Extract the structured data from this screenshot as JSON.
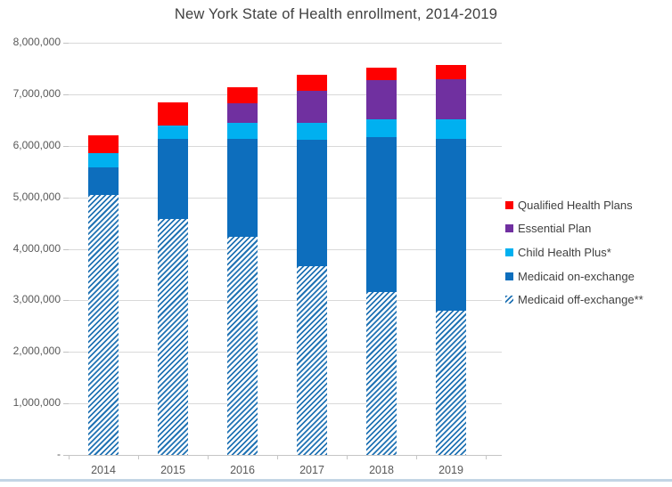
{
  "chart_data": {
    "type": "bar",
    "stacked": true,
    "title": "New York State of Health enrollment, 2014-2019",
    "categories": [
      "2014",
      "2015",
      "2016",
      "2017",
      "2018",
      "2019"
    ],
    "series": [
      {
        "name": "Medicaid off-exchange**",
        "color": "#2173b4",
        "fill": "diagonal-hatch",
        "values": [
          5050000,
          4580000,
          4230000,
          3660000,
          3160000,
          2800000
        ]
      },
      {
        "name": "Medicaid on-exchange",
        "color": "#0d6ebd",
        "fill": "solid",
        "values": [
          530000,
          1560000,
          1910000,
          2450000,
          3000000,
          3330000
        ]
      },
      {
        "name": "Child Health Plus*",
        "color": "#00b0f0",
        "fill": "solid",
        "values": [
          270000,
          250000,
          300000,
          340000,
          360000,
          390000
        ]
      },
      {
        "name": "Essential Plan",
        "color": "#7030a0",
        "fill": "solid",
        "values": [
          0,
          0,
          390000,
          620000,
          750000,
          770000
        ]
      },
      {
        "name": "Qualified Health Plans",
        "color": "#fe0000",
        "fill": "solid",
        "values": [
          360000,
          450000,
          300000,
          300000,
          250000,
          280000
        ]
      }
    ],
    "totals": [
      6210000,
      6840000,
      7130000,
      7370000,
      7520000,
      7570000
    ],
    "y_axis": {
      "min": 0,
      "max": 8000000,
      "tick_interval": 1000000,
      "tick_labels": [
        "8,000,000",
        "7,000,000",
        "6,000,000",
        "5,000,000",
        "4,000,000",
        "3,000,000",
        "2,000,000",
        "1,000,000",
        "-"
      ]
    },
    "x_axis": {
      "tick_labels": [
        "2014",
        "2015",
        "2016",
        "2017",
        "2018",
        "2019"
      ]
    },
    "legend": {
      "position": "right",
      "entries": [
        "Qualified Health Plans",
        "Essential Plan",
        "Child Health Plus*",
        "Medicaid on-exchange",
        "Medicaid off-exchange**"
      ]
    },
    "gridlines": true
  }
}
